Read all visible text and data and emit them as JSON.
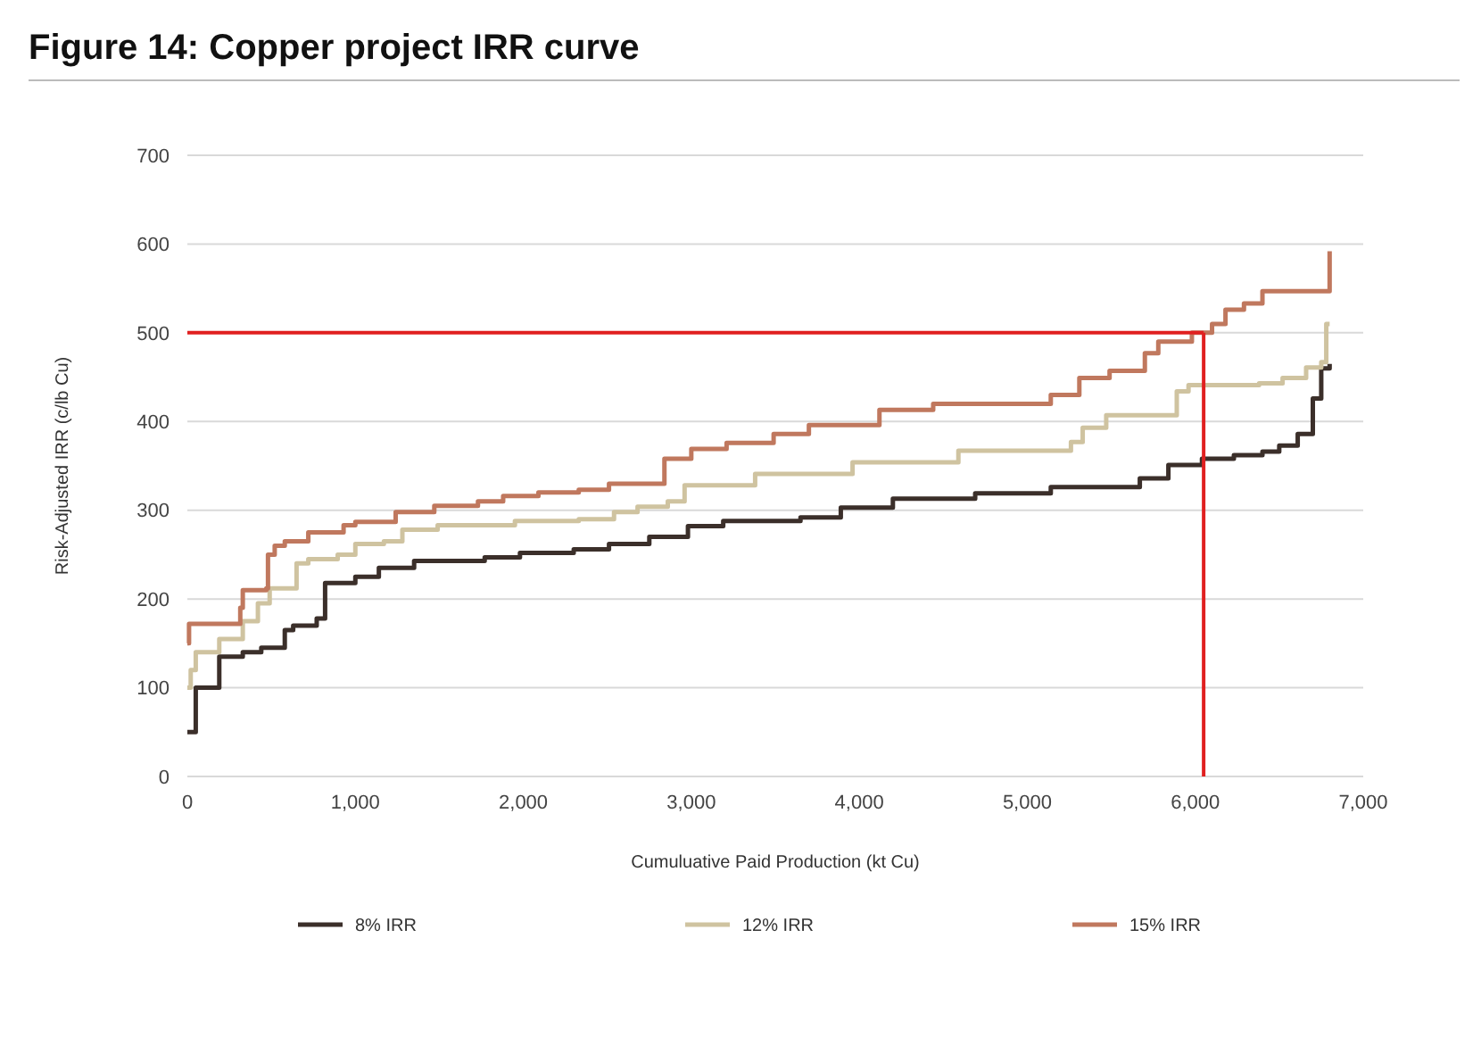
{
  "chart_data": {
    "type": "step",
    "title": "Figure 14: Copper project IRR curve",
    "xlabel": "Cumuluative Paid Production (kt Cu)",
    "ylabel": "Risk-Adjusted IRR (c/lb Cu)",
    "xlim": [
      0,
      7000
    ],
    "ylim": [
      0,
      700
    ],
    "xticks": [
      0,
      {
        "value": 1000,
        "label": "1,000"
      },
      {
        "value": 2000,
        "label": "2,000"
      },
      {
        "value": 3000,
        "label": "3,000"
      },
      {
        "value": 4000,
        "label": "4,000"
      },
      {
        "value": 5000,
        "label": "5,000"
      },
      {
        "value": 6000,
        "label": "6,000"
      },
      {
        "value": 7000,
        "label": "7,000"
      }
    ],
    "yticks": [
      0,
      100,
      200,
      300,
      400,
      500,
      600,
      700
    ],
    "grid": "y",
    "legend": "bottom",
    "ref_lines": [
      {
        "axis": "y",
        "value": 500,
        "color": "#e02020"
      },
      {
        "axis": "x",
        "value": 6050,
        "color": "#e02020"
      }
    ],
    "series": [
      {
        "name": "8% IRR",
        "color": "#3b2f2a",
        "x": [
          0,
          50,
          190,
          330,
          440,
          580,
          630,
          770,
          820,
          1000,
          1140,
          1350,
          1770,
          1980,
          2300,
          2510,
          2750,
          2980,
          3190,
          3650,
          3890,
          4200,
          4690,
          5140,
          5670,
          5840,
          6040,
          6230,
          6400,
          6500,
          6610,
          6700,
          6750,
          6800
        ],
        "values": [
          50,
          100,
          135,
          140,
          145,
          165,
          170,
          178,
          218,
          225,
          235,
          243,
          247,
          252,
          256,
          262,
          270,
          282,
          288,
          292,
          303,
          313,
          319,
          326,
          336,
          351,
          358,
          362,
          366,
          373,
          386,
          426,
          460,
          465
        ]
      },
      {
        "name": "12% IRR",
        "color": "#cfc3a0",
        "x": [
          0,
          20,
          50,
          190,
          330,
          420,
          490,
          650,
          720,
          895,
          1000,
          1170,
          1280,
          1490,
          1950,
          2330,
          2540,
          2680,
          2860,
          2960,
          3380,
          3960,
          4590,
          5260,
          5330,
          5470,
          5890,
          5960,
          6380,
          6520,
          6660,
          6750,
          6780,
          6800
        ],
        "values": [
          100,
          120,
          140,
          155,
          175,
          195,
          212,
          240,
          245,
          250,
          262,
          265,
          278,
          283,
          288,
          290,
          298,
          304,
          310,
          328,
          341,
          354,
          367,
          377,
          393,
          407,
          434,
          441,
          443,
          449,
          461,
          467,
          510,
          510
        ]
      },
      {
        "name": "15% IRR",
        "color": "#c0785e",
        "x": [
          0,
          10,
          315,
          330,
          470,
          480,
          520,
          580,
          720,
          930,
          1000,
          1240,
          1470,
          1730,
          1880,
          2090,
          2330,
          2510,
          2840,
          3000,
          3210,
          3490,
          3700,
          4120,
          4440,
          5140,
          5310,
          5490,
          5700,
          5780,
          5980,
          6100,
          6180,
          6290,
          6400,
          6790,
          6800
        ],
        "values": [
          150,
          172,
          190,
          210,
          212,
          250,
          260,
          265,
          275,
          283,
          287,
          298,
          305,
          310,
          316,
          320,
          323,
          330,
          358,
          369,
          376,
          386,
          396,
          413,
          420,
          430,
          449,
          457,
          477,
          490,
          500,
          510,
          526,
          533,
          547,
          547,
          592
        ]
      }
    ]
  }
}
